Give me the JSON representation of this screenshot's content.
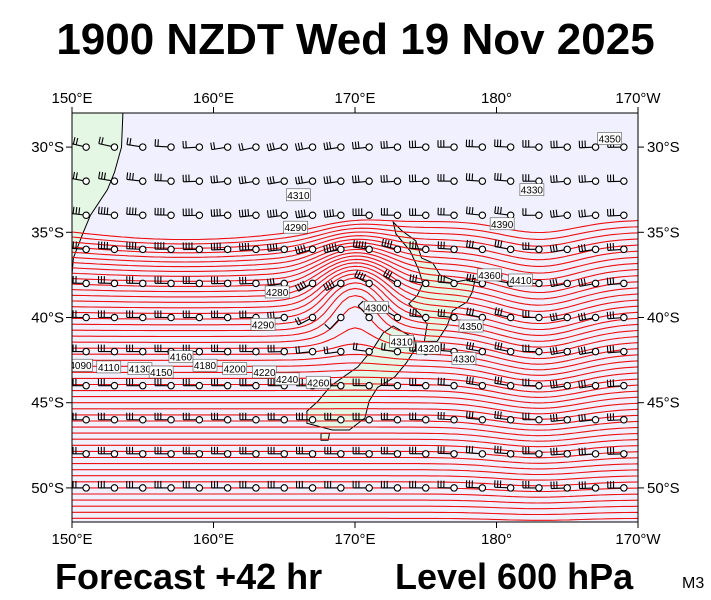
{
  "header": {
    "title": "1900 NZDT Wed 19 Nov 2025"
  },
  "footer": {
    "forecast": "Forecast +42 hr",
    "level": "Level 600 hPa",
    "model": "M3"
  },
  "map": {
    "lon_range": [
      150,
      190
    ],
    "lat_range": [
      -52,
      -28
    ],
    "lon_ticks": [
      {
        "lon": 150,
        "label": "150°E"
      },
      {
        "lon": 160,
        "label": "160°E"
      },
      {
        "lon": 170,
        "label": "170°E"
      },
      {
        "lon": 180,
        "label": "180°"
      },
      {
        "lon": 190,
        "label": "170°W"
      }
    ],
    "lat_ticks": [
      {
        "lat": -30,
        "label": "30°S"
      },
      {
        "lat": -35,
        "label": "35°S"
      },
      {
        "lat": -40,
        "label": "40°S"
      },
      {
        "lat": -45,
        "label": "45°S"
      },
      {
        "lat": -50,
        "label": "50°S"
      }
    ],
    "colors": {
      "ocean": "#f0f0ff",
      "land": "#e4f7e4",
      "contours": "#ee1111",
      "barbs": "#000000"
    },
    "contour_labels": [
      "4350",
      "4330",
      "4310",
      "4290",
      "4280",
      "4290",
      "4300",
      "4310",
      "4320",
      "4330",
      "4350",
      "4360",
      "4390",
      "4410",
      "4160",
      "4180",
      "4200",
      "4220",
      "4240",
      "4260",
      "4090",
      "4110",
      "4130",
      "4150"
    ],
    "low_center": {
      "lon": 170.0,
      "lat": -38.2
    }
  }
}
